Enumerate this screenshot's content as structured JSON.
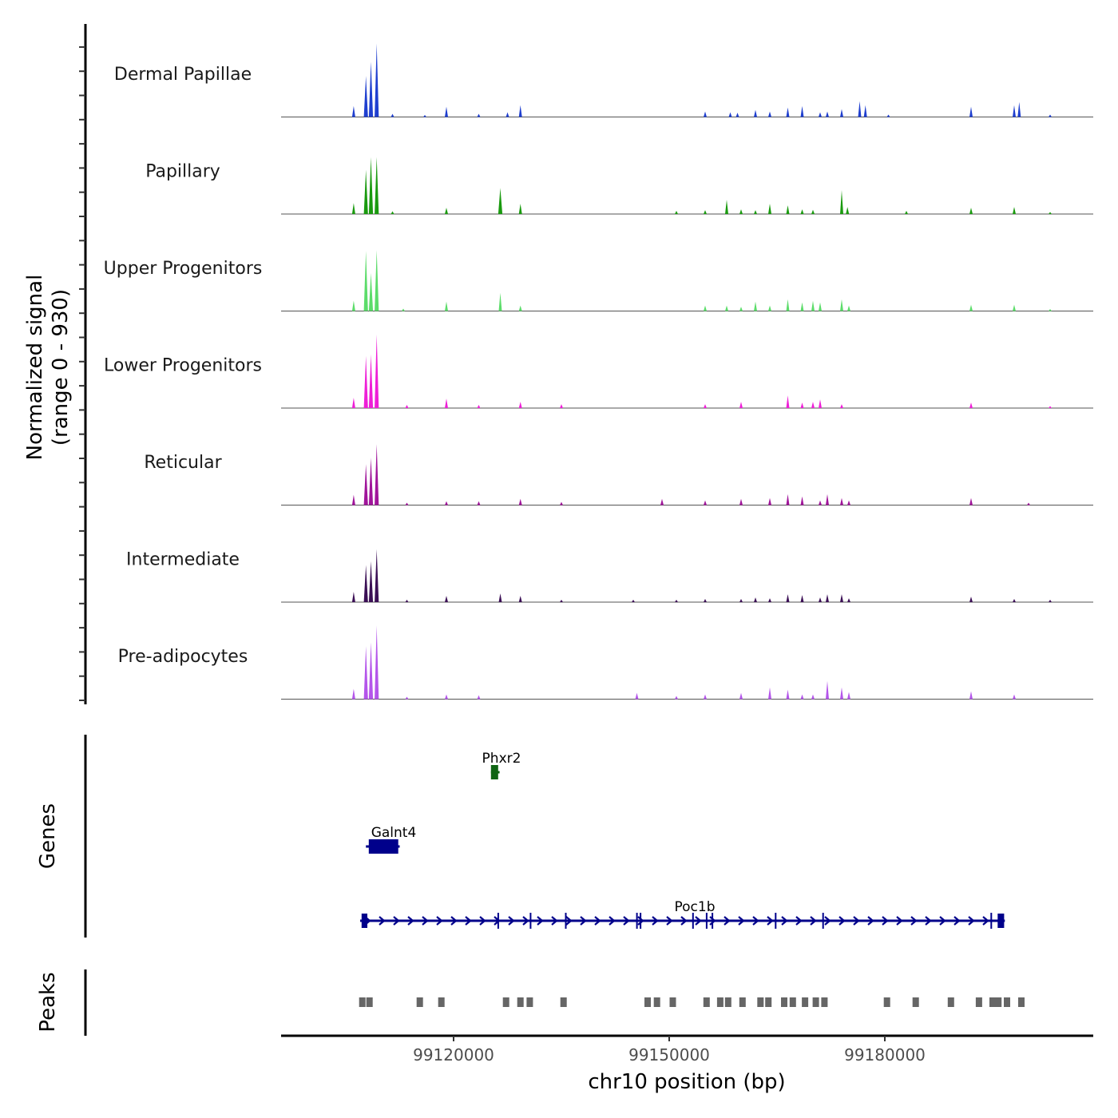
{
  "chart_data": {
    "type": "area",
    "title": "",
    "chromosome": "chr10",
    "xlim": [
      99096000,
      99209000
    ],
    "x_ticks": [
      99120000,
      99150000,
      99180000
    ],
    "x_tick_labels": [
      "99120000",
      "99150000",
      "99180000"
    ],
    "xlabel": "chr10 position (bp)",
    "ylabel_line1": "Normalized signal",
    "ylabel_line2": "(range 0 - 930)",
    "ylim": [
      0,
      930
    ],
    "genes_label": "Genes",
    "peaks_label": "Peaks",
    "series": [
      {
        "name": "Dermal Papillae",
        "color": "#1f3fcf",
        "peaks": [
          [
            99106100,
            140
          ],
          [
            99107800,
            520
          ],
          [
            99108500,
            700
          ],
          [
            99109300,
            930
          ],
          [
            99111500,
            40
          ],
          [
            99116000,
            25
          ],
          [
            99119000,
            130
          ],
          [
            99123500,
            40
          ],
          [
            99127500,
            60
          ],
          [
            99129300,
            150
          ],
          [
            99155000,
            70
          ],
          [
            99158500,
            60
          ],
          [
            99159500,
            55
          ],
          [
            99162000,
            90
          ],
          [
            99164000,
            70
          ],
          [
            99166500,
            120
          ],
          [
            99168500,
            140
          ],
          [
            99171000,
            60
          ],
          [
            99172000,
            70
          ],
          [
            99174000,
            100
          ],
          [
            99176500,
            200
          ],
          [
            99177300,
            150
          ],
          [
            99180500,
            30
          ],
          [
            99192000,
            130
          ],
          [
            99198000,
            150
          ],
          [
            99198700,
            190
          ],
          [
            99203000,
            30
          ]
        ]
      },
      {
        "name": "Papillary",
        "color": "#1a9a0f",
        "peaks": [
          [
            99106100,
            140
          ],
          [
            99107800,
            560
          ],
          [
            99108500,
            720
          ],
          [
            99109300,
            720
          ],
          [
            99111500,
            35
          ],
          [
            99119000,
            80
          ],
          [
            99126500,
            330
          ],
          [
            99129300,
            130
          ],
          [
            99151000,
            40
          ],
          [
            99155000,
            50
          ],
          [
            99158000,
            180
          ],
          [
            99160000,
            60
          ],
          [
            99162000,
            50
          ],
          [
            99164000,
            130
          ],
          [
            99166500,
            110
          ],
          [
            99168500,
            60
          ],
          [
            99170000,
            55
          ],
          [
            99174000,
            300
          ],
          [
            99174800,
            90
          ],
          [
            99183000,
            40
          ],
          [
            99192000,
            80
          ],
          [
            99198000,
            90
          ],
          [
            99203000,
            25
          ]
        ]
      },
      {
        "name": "Upper Progenitors",
        "color": "#5cdc6a",
        "peaks": [
          [
            99106100,
            130
          ],
          [
            99107800,
            760
          ],
          [
            99108500,
            480
          ],
          [
            99109300,
            770
          ],
          [
            99113000,
            30
          ],
          [
            99119000,
            120
          ],
          [
            99126500,
            230
          ],
          [
            99129300,
            70
          ],
          [
            99155000,
            70
          ],
          [
            99158000,
            70
          ],
          [
            99160000,
            55
          ],
          [
            99162000,
            120
          ],
          [
            99164000,
            70
          ],
          [
            99166500,
            150
          ],
          [
            99168500,
            110
          ],
          [
            99170000,
            130
          ],
          [
            99171000,
            110
          ],
          [
            99174000,
            150
          ],
          [
            99175000,
            70
          ],
          [
            99192000,
            80
          ],
          [
            99198000,
            80
          ],
          [
            99203000,
            25
          ]
        ]
      },
      {
        "name": "Lower Progenitors",
        "color": "#ee1fd7",
        "peaks": [
          [
            99106100,
            130
          ],
          [
            99107800,
            660
          ],
          [
            99108500,
            680
          ],
          [
            99109300,
            930
          ],
          [
            99113500,
            40
          ],
          [
            99119000,
            120
          ],
          [
            99123500,
            40
          ],
          [
            99129300,
            80
          ],
          [
            99135000,
            50
          ],
          [
            99155000,
            50
          ],
          [
            99160000,
            80
          ],
          [
            99166500,
            160
          ],
          [
            99168500,
            70
          ],
          [
            99170000,
            80
          ],
          [
            99171000,
            110
          ],
          [
            99174000,
            50
          ],
          [
            99192000,
            70
          ],
          [
            99203000,
            25
          ]
        ]
      },
      {
        "name": "Reticular",
        "color": "#a0149a",
        "peaks": [
          [
            99106100,
            130
          ],
          [
            99107800,
            520
          ],
          [
            99108500,
            600
          ],
          [
            99109300,
            770
          ],
          [
            99113500,
            30
          ],
          [
            99119000,
            50
          ],
          [
            99123500,
            50
          ],
          [
            99129300,
            80
          ],
          [
            99135000,
            40
          ],
          [
            99149000,
            80
          ],
          [
            99155000,
            60
          ],
          [
            99160000,
            80
          ],
          [
            99164000,
            90
          ],
          [
            99166500,
            140
          ],
          [
            99168500,
            110
          ],
          [
            99171000,
            60
          ],
          [
            99172000,
            140
          ],
          [
            99174000,
            90
          ],
          [
            99175000,
            60
          ],
          [
            99192000,
            90
          ],
          [
            99200000,
            30
          ]
        ]
      },
      {
        "name": "Intermediate",
        "color": "#3b0f55",
        "peaks": [
          [
            99106100,
            130
          ],
          [
            99107800,
            470
          ],
          [
            99108500,
            520
          ],
          [
            99109300,
            670
          ],
          [
            99113500,
            30
          ],
          [
            99119000,
            80
          ],
          [
            99126500,
            110
          ],
          [
            99129300,
            80
          ],
          [
            99135000,
            30
          ],
          [
            99145000,
            30
          ],
          [
            99151000,
            30
          ],
          [
            99155000,
            40
          ],
          [
            99160000,
            40
          ],
          [
            99162000,
            60
          ],
          [
            99164000,
            50
          ],
          [
            99166500,
            100
          ],
          [
            99168500,
            90
          ],
          [
            99171000,
            60
          ],
          [
            99172000,
            100
          ],
          [
            99174000,
            100
          ],
          [
            99175000,
            50
          ],
          [
            99192000,
            70
          ],
          [
            99198000,
            40
          ],
          [
            99203000,
            30
          ]
        ]
      },
      {
        "name": "Pre-adipocytes",
        "color": "#b455ea",
        "peaks": [
          [
            99106100,
            130
          ],
          [
            99107800,
            670
          ],
          [
            99108500,
            720
          ],
          [
            99109300,
            930
          ],
          [
            99113500,
            30
          ],
          [
            99119000,
            60
          ],
          [
            99123500,
            50
          ],
          [
            99145500,
            80
          ],
          [
            99151000,
            40
          ],
          [
            99155000,
            60
          ],
          [
            99160000,
            80
          ],
          [
            99164000,
            150
          ],
          [
            99166500,
            120
          ],
          [
            99168500,
            60
          ],
          [
            99170000,
            60
          ],
          [
            99172000,
            230
          ],
          [
            99174000,
            150
          ],
          [
            99175000,
            90
          ],
          [
            99192000,
            100
          ],
          [
            99198000,
            60
          ]
        ]
      }
    ],
    "genes": [
      {
        "name": "Phxr2",
        "start": 99125200,
        "end": 99126400,
        "strand": "-",
        "color": "#0f6413",
        "exons": [
          [
            99125200,
            99126200
          ]
        ]
      },
      {
        "name": "Galnt4",
        "start": 99107800,
        "end": 99112500,
        "strand": "-",
        "color": "#00008b",
        "exons": [
          [
            99108200,
            99112300
          ]
        ]
      },
      {
        "name": "Poc1b",
        "start": 99107000,
        "end": 99196700,
        "strand": "+",
        "color": "#00008b",
        "exons": [
          [
            99107200,
            99108000
          ],
          [
            99126100,
            99126300
          ],
          [
            99130600,
            99130800
          ],
          [
            99135500,
            99135700
          ],
          [
            99145400,
            99145600
          ],
          [
            99145900,
            99146100
          ],
          [
            99153200,
            99153400
          ],
          [
            99155100,
            99155300
          ],
          [
            99155900,
            99156100
          ],
          [
            99164700,
            99164900
          ],
          [
            99171300,
            99171500
          ],
          [
            99194700,
            99194900
          ],
          [
            99195700,
            99196600
          ]
        ]
      }
    ],
    "peak_regions": [
      99107300,
      99108300,
      99115300,
      99118300,
      99127300,
      99129300,
      99130600,
      99135300,
      99147000,
      99148300,
      99150500,
      99155200,
      99157100,
      99158200,
      99160200,
      99162700,
      99163800,
      99166000,
      99167200,
      99168900,
      99170400,
      99171600,
      99180300,
      99184300,
      99189200,
      99193100,
      99195000,
      99195800,
      99197000,
      99199000
    ]
  }
}
